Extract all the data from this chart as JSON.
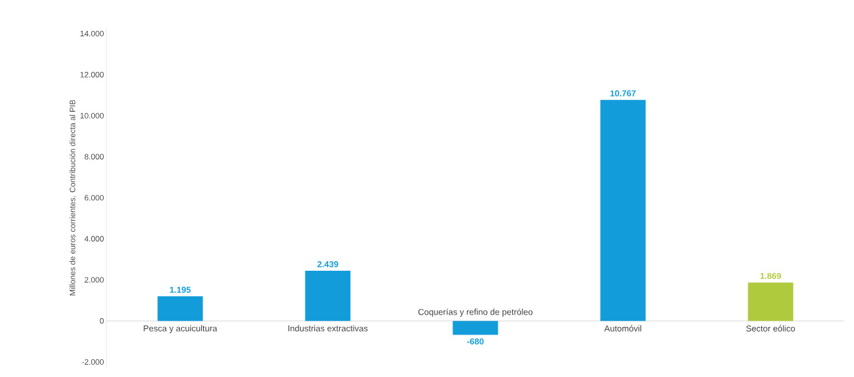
{
  "chart_data": {
    "type": "bar",
    "ylabel": "Millones de euros  corrientes.  Contribución directa al PIB",
    "categories": [
      "Pesca y acuicultura",
      "Industrias extractivas",
      "Coquerías  y refino de petróleo",
      "Automóvil",
      "Sector eólico"
    ],
    "values": [
      1195,
      2439,
      -680,
      10767,
      1869
    ],
    "value_labels": [
      "1.195",
      "2.439",
      "-680",
      "10.767",
      "1.869"
    ],
    "colors": [
      "#129cd9",
      "#129cd9",
      "#129cd9",
      "#129cd9",
      "#afca3c"
    ],
    "ylim": [
      -2300,
      14300
    ],
    "yticks": [
      {
        "value": -2000,
        "label": "-2.000"
      },
      0,
      {
        "value": 2000,
        "label": "2.000"
      },
      {
        "value": 4000,
        "label": "4.000"
      },
      {
        "value": 6000,
        "label": "6.000"
      },
      {
        "value": 8000,
        "label": "8.000"
      },
      {
        "value": 10000,
        "label": "10.000"
      },
      {
        "value": 12000,
        "label": "12.000"
      },
      {
        "value": 14000,
        "label": "14.000"
      }
    ],
    "grid": false
  }
}
